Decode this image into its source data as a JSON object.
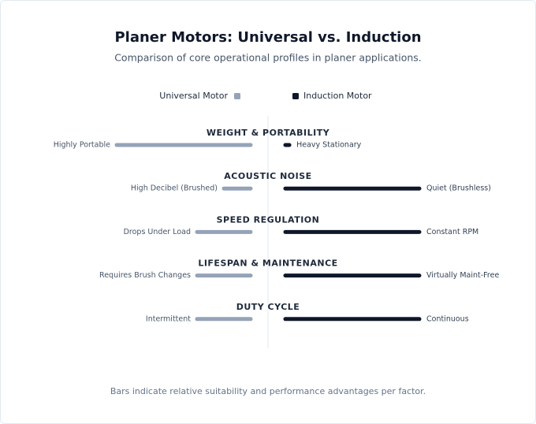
{
  "chart_data": {
    "type": "butterfly",
    "title": "Planer Motors: Universal vs. Induction",
    "subtitle": "Comparison of core operational profiles in planer applications.",
    "categories": [
      "WEIGHT & PORTABILITY",
      "ACOUSTIC NOISE",
      "SPEED REGULATION",
      "LIFESPAN & MAINTENANCE",
      "DUTY CYCLE"
    ],
    "series": [
      {
        "name": "Universal Motor",
        "color": "#94a3b8",
        "values": [
          10,
          2,
          4,
          4,
          4
        ],
        "labels": [
          "Highly Portable",
          "High Decibel (Brushed)",
          "Drops Under Load",
          "Requires Brush Changes",
          "Intermittent"
        ]
      },
      {
        "name": "Induction Motor",
        "color": "#0f172a",
        "values": [
          0.3,
          10,
          10,
          10,
          10
        ],
        "labels": [
          "Heavy Stationary",
          "Quiet (Brushless)",
          "Constant RPM",
          "Virtually Maint-Free",
          "Continuous"
        ]
      }
    ],
    "footnote": "Bars indicate relative suitability and performance advantages per factor."
  }
}
